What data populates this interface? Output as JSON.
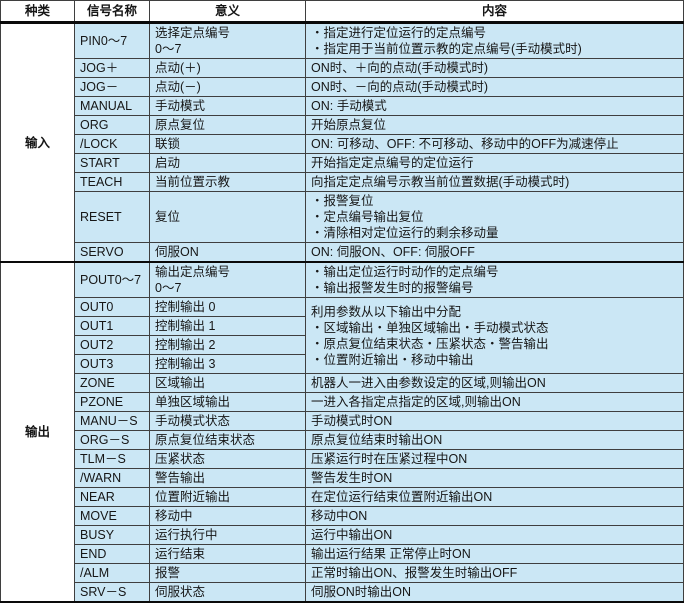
{
  "colors": {
    "cell_blue": "#cbe7f5",
    "grid_border": "#3f3f3f",
    "thick_border": "#0a0a0a",
    "header_bg": "#ffffff"
  },
  "table": {
    "headers": [
      "种类",
      "信号名称",
      "意义",
      "内容"
    ],
    "sections": [
      {
        "category": "输入",
        "rows": [
          {
            "signal": "PIN0～7",
            "meaning": "选择定点编号\n0～7",
            "content": "・指定进行定位运行的定点编号\n・指定用于当前位置示教的定点编号(手动模式时)"
          },
          {
            "signal": "JOG＋",
            "meaning": "点动(＋)",
            "content": "ON时、＋向的点动(手动模式时)"
          },
          {
            "signal": "JOG－",
            "meaning": "点动(－)",
            "content": "ON时、－向的点动(手动模式时)"
          },
          {
            "signal": "MANUAL",
            "meaning": "手动模式",
            "content": "ON: 手动模式"
          },
          {
            "signal": "ORG",
            "meaning": "原点复位",
            "content": "开始原点复位"
          },
          {
            "signal": "/LOCK",
            "meaning": "联锁",
            "content": "ON: 可移动、OFF: 不可移动、移动中的OFF为减速停止"
          },
          {
            "signal": "START",
            "meaning": "启动",
            "content": "开始指定定点编号的定位运行"
          },
          {
            "signal": "TEACH",
            "meaning": "当前位置示教",
            "content": "向指定定点编号示教当前位置数据(手动模式时)"
          },
          {
            "signal": "RESET",
            "meaning": "复位",
            "content": "・报警复位\n・定点编号输出复位\n・清除相对定位运行的剩余移动量"
          },
          {
            "signal": "SERVO",
            "meaning": "伺服ON",
            "content": "ON: 伺服ON、OFF: 伺服OFF"
          }
        ]
      },
      {
        "category": "输出",
        "rows": [
          {
            "signal": "POUT0～7",
            "meaning": "输出定点编号\n0～7",
            "content": "・输出定位运行时动作的定点编号\n・输出报警发生时的报警编号"
          },
          {
            "signal": "OUT0",
            "meaning": "控制输出 0",
            "content": "利用参数从以下输出中分配\n・区域输出・单独区域输出・手动模式状态\n・原点复位结束状态・压紧状态・警告输出\n・位置附近输出・移动中输出",
            "content_rowspan": 4
          },
          {
            "signal": "OUT1",
            "meaning": "控制输出 1",
            "content": null
          },
          {
            "signal": "OUT2",
            "meaning": "控制输出 2",
            "content": null
          },
          {
            "signal": "OUT3",
            "meaning": "控制输出 3",
            "content": null
          },
          {
            "signal": "ZONE",
            "meaning": "区域输出",
            "content": "机器人一进入由参数设定的区域,则输出ON"
          },
          {
            "signal": "PZONE",
            "meaning": "单独区域输出",
            "content": "一进入各指定点指定的区域,则输出ON"
          },
          {
            "signal": "MANU－S",
            "meaning": "手动模式状态",
            "content": "手动模式时ON"
          },
          {
            "signal": "ORG－S",
            "meaning": "原点复位结束状态",
            "content": "原点复位结束时输出ON"
          },
          {
            "signal": "TLM－S",
            "meaning": "压紧状态",
            "content": "压紧运行时在压紧过程中ON"
          },
          {
            "signal": "/WARN",
            "meaning": "警告输出",
            "content": "警告发生时ON"
          },
          {
            "signal": "NEAR",
            "meaning": "位置附近输出",
            "content": "在定位运行结束位置附近输出ON"
          },
          {
            "signal": "MOVE",
            "meaning": "移动中",
            "content": "移动中ON"
          },
          {
            "signal": "BUSY",
            "meaning": "运行执行中",
            "content": "运行中输出ON"
          },
          {
            "signal": "END",
            "meaning": "运行结束",
            "content": "输出运行结果 正常停止时ON"
          },
          {
            "signal": "/ALM",
            "meaning": "报警",
            "content": "正常时输出ON、报警发生时输出OFF"
          },
          {
            "signal": "SRV－S",
            "meaning": "伺服状态",
            "content": "伺服ON时输出ON"
          }
        ]
      }
    ]
  }
}
